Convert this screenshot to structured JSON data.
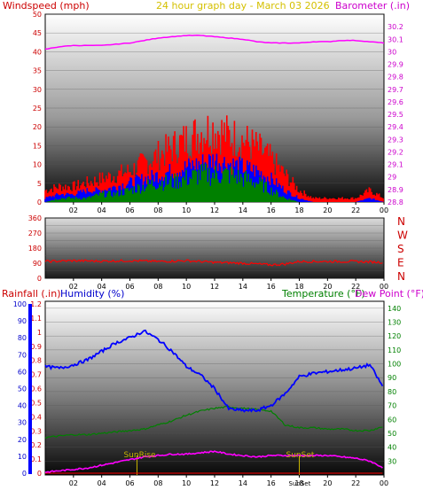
{
  "colors": {
    "wind_avg": "#008000",
    "wind_gust": "#0000ff",
    "wind_max": "#ff0000",
    "barometer": "#ff00ff",
    "direction": "#ff0000",
    "humidity": "#0000ff",
    "temperature": "#008000",
    "dew_point": "#ff00ff",
    "rainfall": "#ff0000",
    "header_red": "#cc0000",
    "header_gold": "#d4c000",
    "sun_gold": "#c8b400"
  },
  "header": {
    "windspeed_label": "Windspeed (mph)",
    "title": "24 hour graph day - March 03 2026",
    "barometer_label": "Barometer (.in)"
  },
  "labels": {
    "rainfall": "Rainfall (.in)",
    "humidity": "Humidity (%)",
    "temperature": "Temperature (°F)",
    "dew_point": "Dew Point (°F)",
    "sunrise": "SunRise",
    "sunset": "SunSet"
  },
  "chart_data": [
    {
      "type": "area",
      "panel": "wind_barometer",
      "xlabel": "",
      "x_ticks": [
        "02",
        "04",
        "06",
        "08",
        "10",
        "12",
        "14",
        "16",
        "18",
        "20",
        "22",
        "00"
      ],
      "y_left": {
        "label": "Windspeed (mph)",
        "range": [
          0,
          50
        ],
        "ticks": [
          0,
          5,
          10,
          15,
          20,
          25,
          30,
          35,
          40,
          45,
          50
        ]
      },
      "y_right": {
        "label": "Barometer (.in)",
        "range": [
          28.8,
          30.3
        ],
        "ticks": [
          "28.8",
          "28.9",
          "29",
          "29.1",
          "29.2",
          "29.3",
          "29.4",
          "29.5",
          "29.6",
          "29.7",
          "29.8",
          "29.9",
          "30",
          "30.1",
          "30.2"
        ]
      },
      "hours": [
        0,
        1,
        2,
        3,
        4,
        5,
        6,
        7,
        8,
        9,
        10,
        11,
        12,
        13,
        14,
        15,
        16,
        17,
        18,
        19,
        20,
        21,
        22,
        23,
        24
      ],
      "series": [
        {
          "key": "wind_max",
          "values": [
            3,
            4,
            4,
            5,
            6,
            7,
            8,
            10,
            12,
            14,
            16,
            18,
            19,
            17,
            16,
            14,
            11,
            7,
            3,
            1,
            1,
            1,
            1,
            3,
            1
          ]
        },
        {
          "key": "wind_gust",
          "values": [
            1,
            2,
            2,
            3,
            3,
            4,
            5,
            6,
            7,
            8,
            9,
            10,
            11,
            10,
            9,
            8,
            6,
            3,
            1,
            0,
            0,
            0,
            0,
            1,
            0
          ]
        },
        {
          "key": "wind_avg",
          "values": [
            0,
            1,
            1,
            1,
            2,
            2,
            3,
            4,
            5,
            5,
            6,
            7,
            7,
            7,
            6,
            5,
            3,
            1,
            0,
            0,
            0,
            0,
            0,
            0,
            0
          ]
        },
        {
          "key": "barometer",
          "values": [
            30.02,
            30.04,
            30.05,
            30.05,
            30.05,
            30.06,
            30.07,
            30.09,
            30.11,
            30.12,
            30.13,
            30.13,
            30.12,
            30.11,
            30.1,
            30.08,
            30.07,
            30.07,
            30.07,
            30.08,
            30.08,
            30.09,
            30.09,
            30.08,
            30.07
          ]
        }
      ]
    },
    {
      "type": "line",
      "panel": "wind_direction",
      "x_ticks": [
        "02",
        "04",
        "06",
        "08",
        "10",
        "12",
        "14",
        "16",
        "18",
        "20",
        "22",
        "00"
      ],
      "y_left": {
        "range": [
          0,
          360
        ],
        "ticks": [
          0,
          45,
          90,
          135,
          180,
          225,
          270,
          315,
          360
        ]
      },
      "compass": [
        "N",
        "W",
        "S",
        "E",
        "N"
      ],
      "hours": [
        0,
        2,
        4,
        6,
        8,
        10,
        12,
        14,
        16,
        17,
        18,
        20,
        22,
        24
      ],
      "series": [
        {
          "key": "direction",
          "values": [
            100,
            105,
            102,
            105,
            100,
            105,
            95,
            90,
            80,
            85,
            100,
            100,
            100,
            95
          ]
        }
      ]
    },
    {
      "type": "line",
      "panel": "temp_humidity",
      "x_ticks": [
        "02",
        "04",
        "06",
        "08",
        "10",
        "12",
        "14",
        "16",
        "18",
        "20",
        "22",
        "00"
      ],
      "y_left_inner": {
        "label": "Rainfall (.in)",
        "range": [
          0,
          1.2
        ],
        "ticks": [
          "0",
          "0.1",
          "0.2",
          "0.3",
          "0.4",
          "0.5",
          "0.6",
          "0.7",
          "0.8",
          "0.9",
          "1",
          "1.1",
          "1.2"
        ]
      },
      "y_left_outer": {
        "label": "Humidity (%)",
        "range": [
          0,
          100
        ],
        "ticks": [
          0,
          10,
          20,
          30,
          40,
          50,
          60,
          70,
          80,
          90,
          100
        ]
      },
      "y_right": {
        "label": "Temperature (°F)",
        "range": [
          20,
          145
        ],
        "ticks": [
          30,
          40,
          50,
          60,
          70,
          80,
          90,
          100,
          110,
          120,
          130,
          140
        ]
      },
      "hours": [
        0,
        1,
        2,
        3,
        4,
        5,
        6,
        7,
        8,
        9,
        10,
        11,
        12,
        13,
        14,
        15,
        16,
        17,
        18,
        19,
        20,
        21,
        22,
        23,
        24
      ],
      "sunrise_hour": 6.5,
      "sunset_hour": 18.0,
      "series": [
        {
          "key": "humidity",
          "values": [
            63,
            62,
            64,
            67,
            72,
            77,
            80,
            84,
            79,
            72,
            63,
            58,
            50,
            38,
            37,
            37,
            40,
            47,
            57,
            59,
            60,
            61,
            62,
            64,
            50
          ]
        },
        {
          "key": "temperature",
          "values": [
            47,
            48,
            49,
            49,
            50,
            51,
            52,
            53,
            56,
            59,
            63,
            66,
            68,
            69,
            68,
            67,
            66,
            56,
            54,
            54,
            53,
            53,
            52,
            52,
            55
          ]
        },
        {
          "key": "dew_point",
          "values": [
            22,
            23,
            24,
            25,
            27,
            29,
            31,
            33,
            34,
            35,
            35,
            36,
            37,
            35,
            34,
            33,
            34,
            34,
            34,
            34,
            34,
            33,
            32,
            30,
            25
          ]
        },
        {
          "key": "rainfall",
          "values": [
            0,
            0,
            0,
            0,
            0,
            0,
            0,
            0,
            0,
            0,
            0,
            0,
            0,
            0,
            0,
            0,
            0,
            0,
            0,
            0,
            0,
            0,
            0,
            0,
            0
          ]
        }
      ]
    }
  ]
}
